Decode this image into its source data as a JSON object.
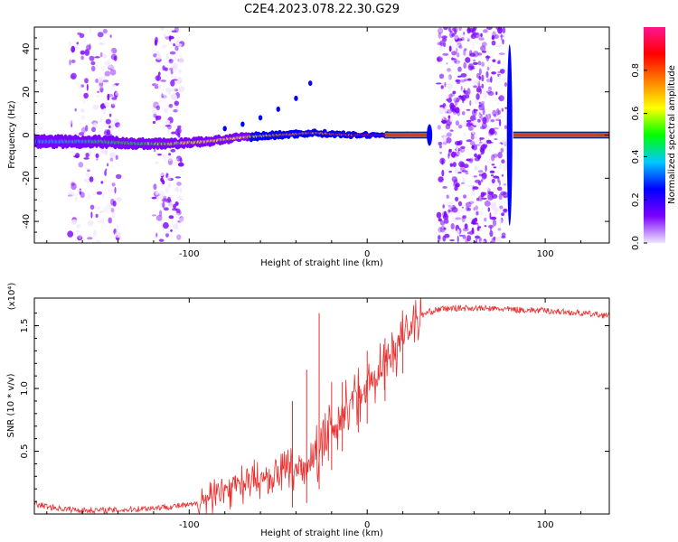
{
  "title": "C2E4.2023.078.22.30.G29",
  "chart_data": [
    {
      "type": "heatmap",
      "xlabel": "Height of straight line (km)",
      "ylabel": "Frequency (Hz)",
      "xlim": [
        -187,
        136
      ],
      "ylim": [
        -50,
        50
      ],
      "x_ticks": [
        -100,
        0,
        100
      ],
      "y_ticks": [
        -40,
        -20,
        0,
        20,
        40
      ],
      "x_tick_labels": [
        "-100",
        "0",
        "100"
      ],
      "y_tick_labels": [
        "-40",
        "-20",
        "0",
        "20",
        "40"
      ],
      "colorbar": {
        "label": "Normalized spectral amplitude",
        "range": [
          0,
          1
        ],
        "ticks": [
          0.0,
          0.2,
          0.4,
          0.6,
          0.8
        ],
        "tick_labels": [
          "0.0",
          "0.2",
          "0.4",
          "0.6",
          "0.8"
        ],
        "colors": [
          "#f0e6ff",
          "#7b00ff",
          "#0000ff",
          "#00c8ff",
          "#00ff00",
          "#ffff00",
          "#ff8000",
          "#ff0000",
          "#ff1493"
        ]
      },
      "noise_bands": [
        [
          -167,
          -139
        ],
        [
          -120,
          -104
        ],
        [
          40,
          78
        ]
      ],
      "trace": {
        "x": [
          -187,
          -170,
          -150,
          -130,
          -110,
          -90,
          -70,
          -50,
          -30,
          -10,
          0,
          10,
          20,
          34,
          36,
          78,
          80,
          82,
          136
        ],
        "y": [
          -3,
          -3,
          -3,
          -4,
          -4,
          -3,
          -1,
          0,
          1,
          0,
          0,
          0,
          0,
          0,
          null,
          null,
          0,
          0,
          0
        ]
      },
      "harmonic": {
        "x": [
          -80,
          -70,
          -60,
          -50,
          -40,
          -32
        ],
        "y": [
          3,
          5,
          8,
          12,
          17,
          24
        ]
      }
    },
    {
      "type": "line",
      "xlabel": "Height of straight line (km)",
      "ylabel": "SNR (10 * v/v)",
      "scale_label": "(x10⁴)",
      "xlim": [
        -187,
        136
      ],
      "ylim": [
        0,
        1.72
      ],
      "x_ticks": [
        -100,
        0,
        100
      ],
      "y_ticks": [
        0.5,
        1.0,
        1.5
      ],
      "x_tick_labels": [
        "-100",
        "0",
        "100"
      ],
      "y_tick_labels": [
        "0.5",
        "1.0",
        "1.5"
      ],
      "series": [
        {
          "color": "#e8302f",
          "envelope": {
            "x": [
              -187,
              -180,
              -170,
              -160,
              -150,
              -140,
              -130,
              -120,
              -110,
              -100,
              -95,
              -90,
              -85,
              -80,
              -75,
              -70,
              -65,
              -60,
              -55,
              -50,
              -45,
              -40,
              -35,
              -30,
              -25,
              -20,
              -15,
              -10,
              -5,
              0,
              5,
              10,
              15,
              20,
              25,
              30,
              35,
              40,
              50,
              60,
              80,
              100,
              120,
              136
            ],
            "y": [
              0.08,
              0.06,
              0.04,
              0.03,
              0.03,
              0.03,
              0.04,
              0.05,
              0.06,
              0.07,
              0.08,
              0.1,
              0.14,
              0.2,
              0.22,
              0.24,
              0.26,
              0.28,
              0.3,
              0.32,
              0.34,
              0.36,
              0.38,
              0.42,
              0.55,
              0.65,
              0.78,
              0.88,
              0.95,
              1.02,
              1.1,
              1.2,
              1.3,
              1.42,
              1.52,
              1.58,
              1.61,
              1.63,
              1.64,
              1.64,
              1.63,
              1.62,
              1.6,
              1.58
            ]
          },
          "spikes": [
            {
              "x": -27,
              "y": 1.6
            },
            {
              "x": -34,
              "y": 1.15
            },
            {
              "x": -42,
              "y": 0.9
            },
            {
              "x": -20,
              "y": 1.05
            },
            {
              "x": -14,
              "y": 1.05
            },
            {
              "x": -5,
              "y": 1.1
            },
            {
              "x": 0,
              "y": 1.3
            },
            {
              "x": 10,
              "y": 1.4
            },
            {
              "x": 20,
              "y": 1.55
            }
          ]
        }
      ]
    }
  ]
}
